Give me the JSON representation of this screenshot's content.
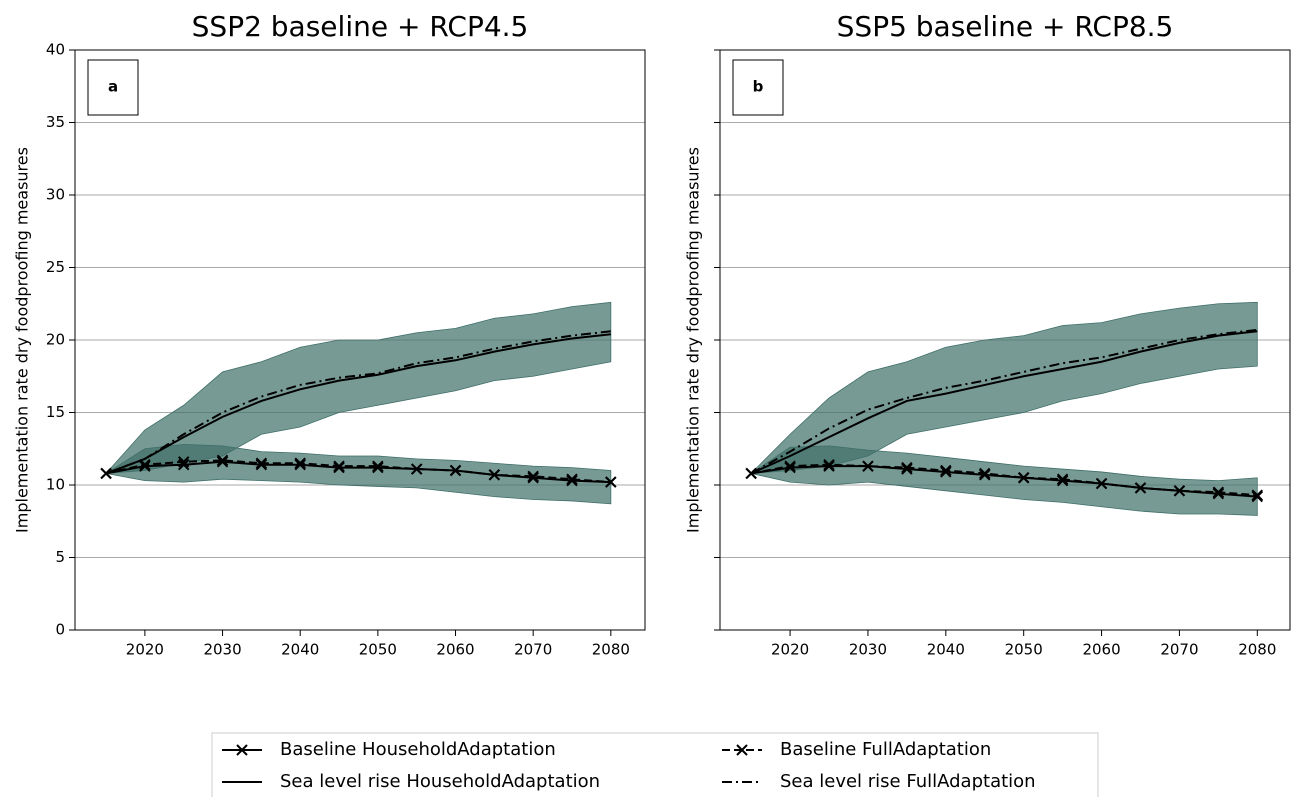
{
  "chart_data": [
    {
      "type": "line",
      "title": "SSP2 baseline + RCP4.5",
      "panel_label": "a",
      "ylabel": "Implementation rate dry foodproofing measures",
      "x": [
        2015,
        2020,
        2025,
        2030,
        2035,
        2040,
        2045,
        2050,
        2055,
        2060,
        2065,
        2070,
        2075,
        2080
      ],
      "xlim": [
        2011,
        2084.4
      ],
      "xticks": [
        2020,
        2030,
        2040,
        2050,
        2060,
        2070,
        2080
      ],
      "ylim": [
        0,
        40
      ],
      "yticks": [
        0,
        5,
        10,
        15,
        20,
        25,
        30,
        35,
        40
      ],
      "show_yticklabels": true,
      "grid": true,
      "bands": [
        {
          "color": "#3f6f68",
          "upper": [
            10.8,
            13.8,
            15.5,
            17.8,
            18.5,
            19.5,
            20.0,
            20.0,
            20.5,
            20.8,
            21.5,
            21.8,
            22.3,
            22.6
          ],
          "lower": [
            10.8,
            11.0,
            11.5,
            12.0,
            13.5,
            14.0,
            15.0,
            15.5,
            16.0,
            16.5,
            17.2,
            17.5,
            18.0,
            18.5
          ]
        },
        {
          "color": "#3f6f68",
          "upper": [
            10.8,
            12.5,
            12.8,
            12.7,
            12.3,
            12.2,
            12.0,
            12.0,
            11.8,
            11.7,
            11.5,
            11.3,
            11.2,
            11.0
          ],
          "lower": [
            10.8,
            10.3,
            10.2,
            10.4,
            10.3,
            10.2,
            10.0,
            9.9,
            9.8,
            9.5,
            9.2,
            9.0,
            8.9,
            8.7
          ]
        }
      ],
      "series": [
        {
          "name": "Baseline HouseholdAdaptation",
          "color": "#000000",
          "linestyle": "solid",
          "marker": "x",
          "values": [
            10.8,
            11.3,
            11.4,
            11.6,
            11.4,
            11.4,
            11.2,
            11.2,
            11.1,
            11.0,
            10.7,
            10.5,
            10.3,
            10.2
          ]
        },
        {
          "name": "Baseline FullAdaptation",
          "color": "#000000",
          "linestyle": "dashed",
          "marker": "x",
          "values": [
            10.8,
            11.4,
            11.6,
            11.7,
            11.5,
            11.5,
            11.3,
            11.3,
            11.1,
            11.0,
            10.7,
            10.6,
            10.4,
            10.2
          ]
        },
        {
          "name": "Sea level rise HouseholdAdaptation",
          "color": "#000000",
          "linestyle": "solid",
          "values": [
            10.8,
            11.8,
            13.3,
            14.7,
            15.8,
            16.6,
            17.2,
            17.6,
            18.2,
            18.6,
            19.2,
            19.7,
            20.1,
            20.4
          ]
        },
        {
          "name": "Sea level rise FullAdaptation",
          "color": "#000000",
          "linestyle": "dashdot",
          "values": [
            10.8,
            11.8,
            13.5,
            15.0,
            16.1,
            16.9,
            17.4,
            17.7,
            18.4,
            18.8,
            19.4,
            19.9,
            20.3,
            20.6
          ]
        }
      ]
    },
    {
      "type": "line",
      "title": "SSP5 baseline + RCP8.5",
      "panel_label": "b",
      "ylabel": "Implementation rate dry foodproofing measures",
      "x": [
        2015,
        2020,
        2025,
        2030,
        2035,
        2040,
        2045,
        2050,
        2055,
        2060,
        2065,
        2070,
        2075,
        2080
      ],
      "xlim": [
        2011,
        2084.2
      ],
      "xticks": [
        2020,
        2030,
        2040,
        2050,
        2060,
        2070,
        2080
      ],
      "ylim": [
        0,
        40
      ],
      "yticks": [
        0,
        5,
        10,
        15,
        20,
        25,
        30,
        35,
        40
      ],
      "show_yticklabels": false,
      "grid": true,
      "bands": [
        {
          "color": "#3f6f68",
          "upper": [
            10.8,
            13.5,
            16.0,
            17.8,
            18.5,
            19.5,
            20.0,
            20.3,
            21.0,
            21.2,
            21.8,
            22.2,
            22.5,
            22.6
          ],
          "lower": [
            10.8,
            11.0,
            11.3,
            12.0,
            13.5,
            14.0,
            14.5,
            15.0,
            15.8,
            16.3,
            17.0,
            17.5,
            18.0,
            18.2
          ]
        },
        {
          "color": "#3f6f68",
          "upper": [
            10.8,
            12.6,
            12.7,
            12.4,
            12.2,
            11.9,
            11.6,
            11.3,
            11.1,
            10.9,
            10.6,
            10.4,
            10.3,
            10.5
          ]
        },
        {
          "color": "#3f6f68",
          "upper": [
            10.8,
            12.6,
            12.7,
            12.4,
            12.2,
            11.9,
            11.6,
            11.3,
            11.1,
            10.9,
            10.6,
            10.4,
            10.3,
            10.5
          ],
          "lower": [
            10.8,
            10.2,
            10.0,
            10.2,
            9.9,
            9.6,
            9.3,
            9.0,
            8.8,
            8.5,
            8.2,
            8.0,
            8.0,
            7.9
          ]
        }
      ],
      "series": [
        {
          "name": "Baseline HouseholdAdaptation",
          "color": "#000000",
          "linestyle": "solid",
          "marker": "x",
          "values": [
            10.8,
            11.2,
            11.3,
            11.3,
            11.1,
            10.9,
            10.7,
            10.5,
            10.3,
            10.1,
            9.8,
            9.6,
            9.4,
            9.2
          ]
        },
        {
          "name": "Baseline FullAdaptation",
          "color": "#000000",
          "linestyle": "dashed",
          "marker": "x",
          "values": [
            10.8,
            11.3,
            11.4,
            11.3,
            11.2,
            11.0,
            10.8,
            10.5,
            10.4,
            10.1,
            9.8,
            9.6,
            9.5,
            9.3
          ]
        },
        {
          "name": "Sea level rise HouseholdAdaptation",
          "color": "#000000",
          "linestyle": "solid",
          "values": [
            10.8,
            12.0,
            13.3,
            14.6,
            15.8,
            16.3,
            16.9,
            17.5,
            18.0,
            18.5,
            19.2,
            19.8,
            20.3,
            20.6
          ]
        },
        {
          "name": "Sea level rise FullAdaptation",
          "color": "#000000",
          "linestyle": "dashdot",
          "values": [
            10.8,
            12.3,
            13.9,
            15.2,
            16.0,
            16.7,
            17.2,
            17.8,
            18.4,
            18.8,
            19.4,
            20.0,
            20.4,
            20.7
          ]
        }
      ]
    }
  ]
}
